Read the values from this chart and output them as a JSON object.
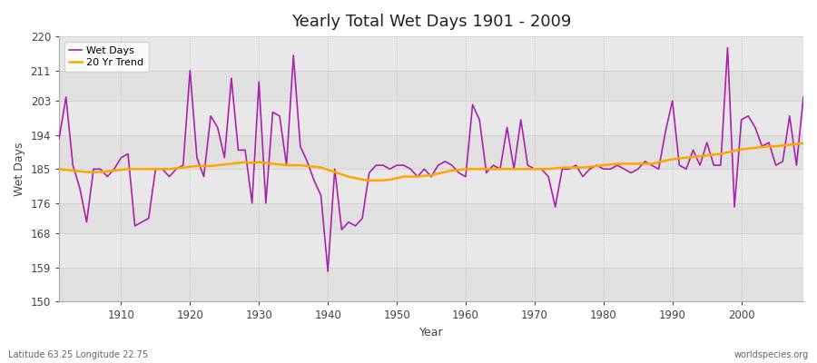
{
  "title": "Yearly Total Wet Days 1901 - 2009",
  "xlabel": "Year",
  "ylabel": "Wet Days",
  "ylim": [
    150,
    220
  ],
  "yticks": [
    150,
    159,
    168,
    176,
    185,
    194,
    203,
    211,
    220
  ],
  "footer_left": "Latitude 63.25 Longitude 22.75",
  "footer_right": "worldspecies.org",
  "wet_days_color": "#AA22AA",
  "trend_color": "#FFA500",
  "bg_color": "#EAEAEA",
  "fig_color": "#FFFFFF",
  "years": [
    1901,
    1902,
    1903,
    1904,
    1905,
    1906,
    1907,
    1908,
    1909,
    1910,
    1911,
    1912,
    1913,
    1914,
    1915,
    1916,
    1917,
    1918,
    1919,
    1920,
    1921,
    1922,
    1923,
    1924,
    1925,
    1926,
    1927,
    1928,
    1929,
    1930,
    1931,
    1932,
    1933,
    1934,
    1935,
    1936,
    1937,
    1938,
    1939,
    1940,
    1941,
    1942,
    1943,
    1944,
    1945,
    1946,
    1947,
    1948,
    1949,
    1950,
    1951,
    1952,
    1953,
    1954,
    1955,
    1956,
    1957,
    1958,
    1959,
    1960,
    1961,
    1962,
    1963,
    1964,
    1965,
    1966,
    1967,
    1968,
    1969,
    1970,
    1971,
    1972,
    1973,
    1974,
    1975,
    1976,
    1977,
    1978,
    1979,
    1980,
    1981,
    1982,
    1983,
    1984,
    1985,
    1986,
    1987,
    1988,
    1989,
    1990,
    1991,
    1992,
    1993,
    1994,
    1995,
    1996,
    1997,
    1998,
    1999,
    2000,
    2001,
    2002,
    2003,
    2004,
    2005,
    2006,
    2007,
    2008,
    2009
  ],
  "wet_days": [
    193,
    204,
    186,
    180,
    171,
    185,
    185,
    183,
    185,
    188,
    189,
    170,
    171,
    172,
    185,
    185,
    183,
    185,
    186,
    211,
    188,
    183,
    199,
    196,
    188,
    209,
    190,
    190,
    176,
    208,
    176,
    200,
    199,
    186,
    215,
    191,
    187,
    182,
    178,
    158,
    185,
    169,
    171,
    170,
    172,
    184,
    186,
    186,
    185,
    186,
    186,
    185,
    183,
    185,
    183,
    186,
    187,
    186,
    184,
    183,
    202,
    198,
    184,
    186,
    185,
    196,
    185,
    198,
    186,
    185,
    185,
    183,
    175,
    185,
    185,
    186,
    183,
    185,
    186,
    185,
    185,
    186,
    185,
    184,
    185,
    187,
    186,
    185,
    195,
    203,
    186,
    185,
    190,
    186,
    192,
    186,
    186,
    217,
    175,
    198,
    199,
    196,
    191,
    192,
    186,
    187,
    199,
    186,
    204
  ],
  "trend": [
    185.0,
    184.8,
    184.6,
    184.4,
    184.2,
    184.2,
    184.2,
    184.4,
    184.6,
    184.8,
    185.0,
    185.0,
    185.0,
    185.0,
    185.0,
    185.0,
    185.0,
    185.2,
    185.4,
    185.6,
    185.8,
    185.8,
    185.8,
    186.0,
    186.2,
    186.4,
    186.6,
    186.8,
    186.6,
    186.8,
    186.6,
    186.4,
    186.2,
    186.0,
    186.0,
    186.0,
    185.8,
    185.6,
    185.4,
    184.8,
    184.2,
    183.6,
    183.0,
    182.6,
    182.2,
    182.0,
    182.0,
    182.0,
    182.2,
    182.6,
    183.0,
    183.0,
    183.0,
    183.2,
    183.4,
    183.8,
    184.2,
    184.6,
    184.8,
    185.0,
    185.0,
    185.0,
    185.0,
    185.0,
    185.0,
    185.0,
    185.0,
    185.0,
    185.0,
    185.0,
    185.0,
    185.0,
    185.2,
    185.4,
    185.4,
    185.4,
    185.4,
    185.6,
    185.8,
    186.0,
    186.2,
    186.4,
    186.4,
    186.4,
    186.4,
    186.4,
    186.4,
    186.8,
    187.2,
    187.6,
    187.8,
    188.0,
    188.2,
    188.4,
    188.6,
    188.8,
    189.0,
    189.4,
    189.8,
    190.2,
    190.4,
    190.6,
    190.8,
    191.0,
    191.0,
    191.2,
    191.4,
    191.6,
    191.8
  ]
}
